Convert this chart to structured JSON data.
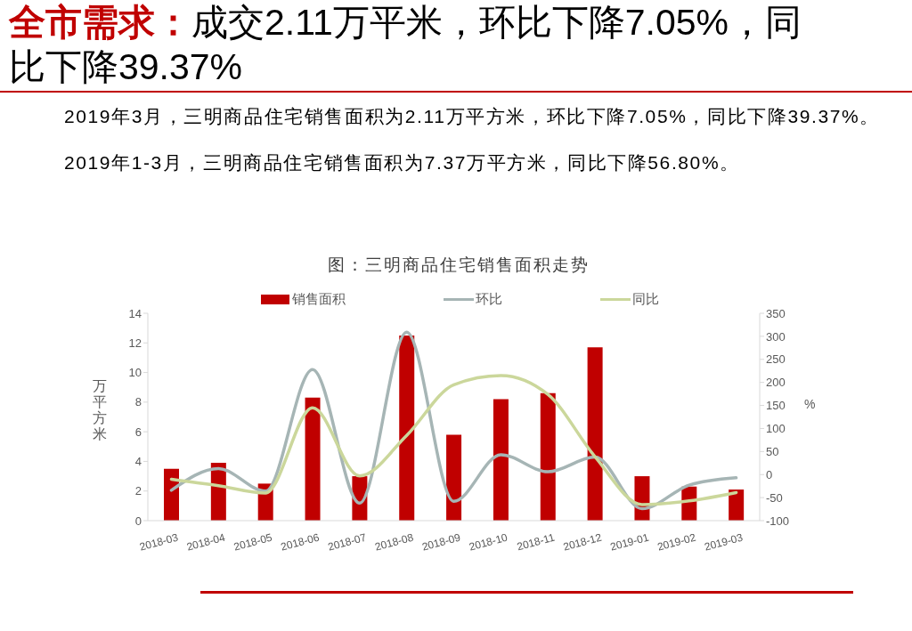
{
  "chart_data": {
    "type": "bar",
    "title": "全市需求：成交2.11万平米，环比下降7.05%，同比下降39.37%",
    "subtitle": "图：三明商品住宅销售面积走势",
    "annotations": [
      "2019年3月，三明商品住宅销售面积为2.11万平方米，环比下降7.05%，同比下降39.37%。",
      "2019年1-3月，三明商品住宅销售面积为7.37万平方米，同比下降56.80%。"
    ],
    "ylabel": "万平方米",
    "y2label": "%",
    "categories": [
      "2018-03",
      "2018-04",
      "2018-05",
      "2018-06",
      "2018-07",
      "2018-08",
      "2018-09",
      "2018-10",
      "2018-11",
      "2018-12",
      "2019-01",
      "2019-02",
      "2019-03"
    ],
    "series": [
      {
        "name": "销售面积",
        "color": "#c00000",
        "values": [
          3.5,
          3.9,
          2.5,
          8.3,
          3.0,
          12.5,
          5.8,
          8.2,
          8.6,
          11.7,
          3.0,
          2.3,
          2.1
        ]
      },
      {
        "name": "环比",
        "type": "line",
        "axis": "y2",
        "color": "#a6b5b5",
        "values": [
          -34,
          13,
          -36,
          228,
          -62,
          309,
          -58,
          43,
          6,
          38,
          -74,
          -23,
          -7
        ]
      },
      {
        "name": "同比",
        "type": "line",
        "axis": "y2",
        "color": "#cbd79b",
        "values": [
          -10,
          -24,
          -40,
          145,
          -3,
          85,
          195,
          215,
          174,
          39,
          -65,
          -57,
          -39
        ]
      }
    ],
    "ylim": [
      0,
      14
    ],
    "yticks": [
      0,
      2,
      4,
      6,
      8,
      10,
      12,
      14
    ],
    "y2lim": [
      -100,
      350
    ],
    "y2ticks": [
      -100,
      -50,
      0,
      50,
      100,
      150,
      200,
      250,
      300,
      350
    ],
    "legend": "top"
  }
}
